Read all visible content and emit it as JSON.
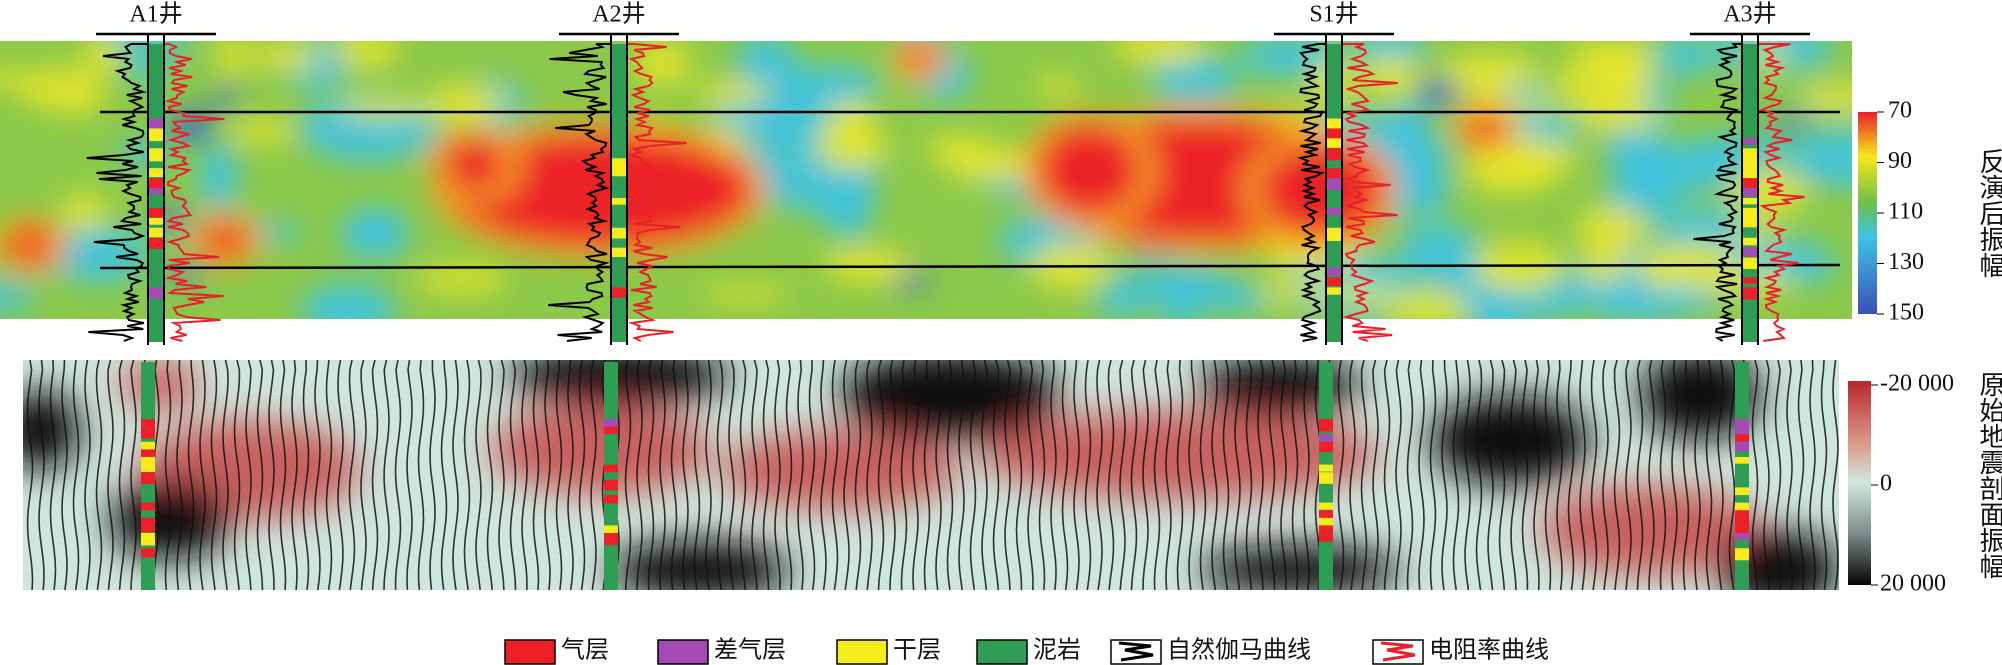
{
  "wells": [
    {
      "label": "A1井"
    },
    {
      "label": "A2井"
    },
    {
      "label": "S1井"
    },
    {
      "label": "A3井"
    }
  ],
  "top_colorbar": {
    "title": "反演后振幅",
    "ticks": [
      "70",
      "90",
      "110",
      "130",
      "150"
    ]
  },
  "bottom_colorbar": {
    "title": "原始地震剖面振幅",
    "ticks": [
      "-20 000",
      "0",
      "20 000"
    ]
  },
  "legend": [
    {
      "label": "气层"
    },
    {
      "label": "差气层"
    },
    {
      "label": "干层"
    },
    {
      "label": "泥岩"
    },
    {
      "label": "自然伽马曲线"
    },
    {
      "label": "电阻率曲线"
    }
  ]
}
